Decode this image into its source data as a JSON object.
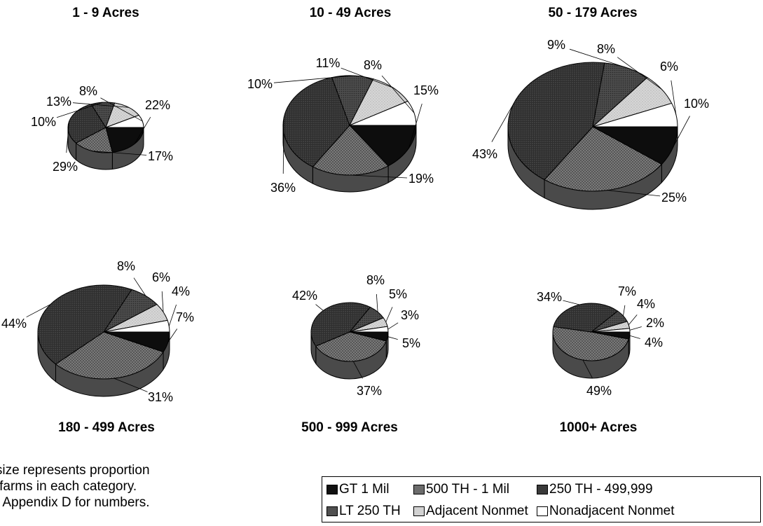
{
  "chart_data": {
    "type": "pie",
    "series_names": [
      "GT 1 Mil",
      "500 TH - 1 Mil",
      "250 TH - 499,999",
      "LT 250 TH",
      "Adjacent Nonmet",
      "Nonadjacent Nonmet"
    ],
    "colors": [
      "#111111",
      "#6c6c6c",
      "#3a3a3a",
      "#505050",
      "#d2d2d2",
      "#ffffff"
    ],
    "charts": [
      {
        "title": "1 - 9 Acres",
        "values": [
          22,
          17,
          29,
          10,
          13,
          8
        ],
        "labels": [
          "22%",
          "17%",
          "29%",
          "10%",
          "13%",
          "8%"
        ]
      },
      {
        "title": "10 - 49 Acres",
        "values": [
          15,
          19,
          36,
          10,
          11,
          8
        ],
        "labels": [
          "15%",
          "19%",
          "36%",
          "10%",
          "11%",
          "8%"
        ]
      },
      {
        "title": "50 - 179 Acres",
        "values": [
          10,
          25,
          43,
          9,
          8,
          6
        ],
        "labels": [
          "10%",
          "25%",
          "43%",
          "9%",
          "8%",
          "6%"
        ]
      },
      {
        "title": "180 - 499 Acres",
        "values": [
          7,
          31,
          44,
          8,
          6,
          4
        ],
        "labels": [
          "7%",
          "31%",
          "44%",
          "8%",
          "6%",
          "4%"
        ]
      },
      {
        "title": "500 - 999 Acres",
        "values": [
          5,
          37,
          42,
          8,
          5,
          3
        ],
        "labels": [
          "5%",
          "37%",
          "42%",
          "8%",
          "5%",
          "3%"
        ]
      },
      {
        "title": "1000+ Acres",
        "values": [
          4,
          49,
          34,
          7,
          4,
          2
        ],
        "labels": [
          "4%",
          "49%",
          "34%",
          "7%",
          "4%",
          "2%"
        ]
      }
    ]
  },
  "note": {
    "line1": "e size represents proportion",
    "line2": "of farms in each category.",
    "line3": "ee Appendix D for numbers."
  },
  "legend": {
    "items": [
      "GT 1 Mil",
      "500 TH - 1 Mil",
      "250 TH - 499,999",
      "LT 250 TH",
      "Adjacent Nonmet",
      "Nonadjacent Nonmet"
    ]
  }
}
